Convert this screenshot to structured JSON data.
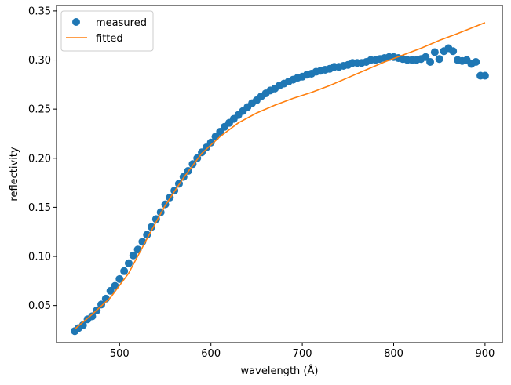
{
  "chart_data": {
    "type": "scatter",
    "title": "",
    "xlabel": "wavelength (Å)",
    "ylabel": "reflectivity",
    "xlim": [
      431,
      919
    ],
    "ylim": [
      0.0122,
      0.3555
    ],
    "xticks": [
      500,
      600,
      700,
      800,
      900
    ],
    "yticks": [
      0.05,
      0.1,
      0.15,
      0.2,
      0.25,
      0.3,
      0.35
    ],
    "grid": false,
    "legend_position": "upper left",
    "series": [
      {
        "name": "measured",
        "kind": "scatter",
        "color": "#1f77b4",
        "x": [
          451,
          455,
          460,
          465,
          470,
          475,
          480,
          485,
          490,
          495,
          500,
          505,
          510,
          515,
          520,
          525,
          530,
          535,
          540,
          545,
          550,
          555,
          560,
          565,
          570,
          575,
          580,
          585,
          590,
          595,
          600,
          605,
          610,
          615,
          620,
          625,
          630,
          635,
          640,
          645,
          650,
          655,
          660,
          665,
          670,
          675,
          680,
          685,
          690,
          695,
          700,
          705,
          710,
          715,
          720,
          725,
          730,
          735,
          740,
          745,
          750,
          755,
          760,
          765,
          770,
          775,
          780,
          785,
          790,
          795,
          800,
          805,
          810,
          815,
          820,
          825,
          830,
          835,
          840,
          845,
          850,
          855,
          860,
          865,
          870,
          875,
          880,
          885,
          890,
          895,
          900
        ],
        "y": [
          0.024,
          0.027,
          0.03,
          0.036,
          0.039,
          0.045,
          0.051,
          0.057,
          0.065,
          0.07,
          0.077,
          0.085,
          0.093,
          0.101,
          0.107,
          0.115,
          0.122,
          0.13,
          0.138,
          0.145,
          0.153,
          0.16,
          0.167,
          0.174,
          0.181,
          0.187,
          0.194,
          0.2,
          0.206,
          0.211,
          0.216,
          0.222,
          0.227,
          0.232,
          0.236,
          0.24,
          0.244,
          0.248,
          0.252,
          0.256,
          0.259,
          0.263,
          0.266,
          0.269,
          0.271,
          0.274,
          0.276,
          0.278,
          0.28,
          0.282,
          0.283,
          0.285,
          0.286,
          0.288,
          0.289,
          0.29,
          0.291,
          0.293,
          0.293,
          0.294,
          0.295,
          0.297,
          0.297,
          0.297,
          0.298,
          0.3,
          0.3,
          0.301,
          0.302,
          0.303,
          0.303,
          0.302,
          0.301,
          0.3,
          0.3,
          0.3,
          0.301,
          0.303,
          0.298,
          0.308,
          0.301,
          0.309,
          0.312,
          0.309,
          0.3,
          0.299,
          0.3,
          0.296,
          0.298,
          0.284,
          0.284
        ]
      },
      {
        "name": "fitted",
        "kind": "line",
        "color": "#ff7f0e",
        "x": [
          451,
          470,
          490,
          510,
          530,
          550,
          570,
          590,
          610,
          630,
          650,
          670,
          690,
          710,
          730,
          750,
          770,
          790,
          810,
          830,
          850,
          870,
          900
        ],
        "y": [
          0.026,
          0.041,
          0.058,
          0.083,
          0.118,
          0.152,
          0.18,
          0.205,
          0.222,
          0.236,
          0.246,
          0.254,
          0.261,
          0.267,
          0.274,
          0.282,
          0.29,
          0.298,
          0.305,
          0.312,
          0.32,
          0.327,
          0.338
        ]
      }
    ]
  }
}
